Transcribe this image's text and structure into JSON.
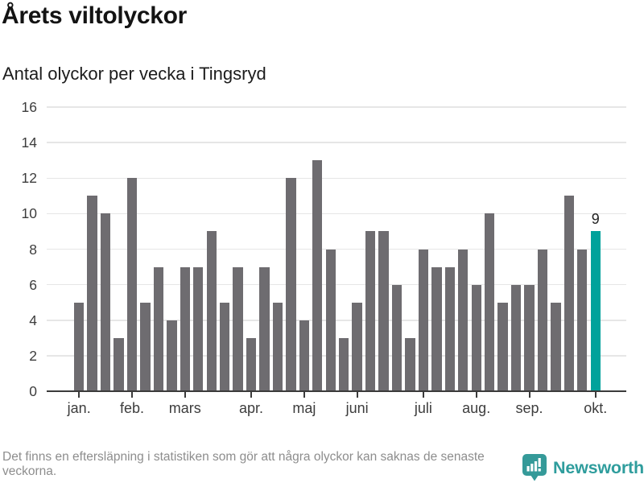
{
  "chart_data": {
    "type": "bar",
    "title": "Årets viltolyckor",
    "subtitle": "Antal olyckor per vecka i Tingsryd",
    "values": [
      5,
      11,
      10,
      3,
      12,
      5,
      7,
      4,
      7,
      7,
      9,
      5,
      7,
      3,
      7,
      5,
      12,
      4,
      13,
      8,
      3,
      5,
      9,
      9,
      6,
      3,
      8,
      7,
      7,
      8,
      6,
      10,
      5,
      6,
      6,
      8,
      5,
      11,
      8,
      9
    ],
    "ylim": [
      0,
      16
    ],
    "y_ticks": [
      0,
      2,
      4,
      6,
      8,
      10,
      12,
      14,
      16
    ],
    "x_ticks": [
      {
        "label": "jan.",
        "bar_index": 0
      },
      {
        "label": "feb.",
        "bar_index": 4
      },
      {
        "label": "mars",
        "bar_index": 8
      },
      {
        "label": "apr.",
        "bar_index": 13
      },
      {
        "label": "maj",
        "bar_index": 17
      },
      {
        "label": "juni",
        "bar_index": 21
      },
      {
        "label": "juli",
        "bar_index": 26
      },
      {
        "label": "aug.",
        "bar_index": 30
      },
      {
        "label": "sep.",
        "bar_index": 34
      },
      {
        "label": "okt.",
        "bar_index": 39
      }
    ],
    "grid": true,
    "legend": false,
    "bar_color": "#6e6c70",
    "highlight_color": "#00a29b",
    "highlight_index": 39,
    "annotation": {
      "bar_index": 39,
      "text": "9"
    }
  },
  "footer": {
    "note": "Det finns en eftersläpning i statistiken som gör att några olyckor kan saknas de senaste veckorna.",
    "brand": "Newsworthy",
    "brand_color": "#2f9d9d"
  }
}
